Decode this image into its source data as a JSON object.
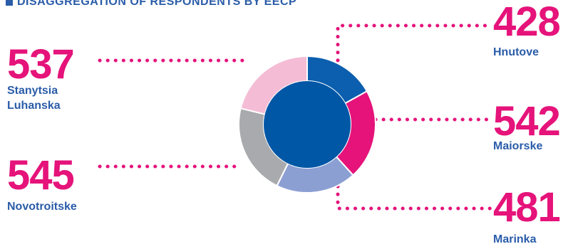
{
  "header": {
    "title": "DISAGGREGATION OF RESPONDENTS BY EECP"
  },
  "colors": {
    "accent": "#e5137a",
    "label": "#2a5ca8",
    "center": "#0057a6"
  },
  "chart_data": {
    "type": "pie",
    "title": "DISAGGREGATION OF RESPONDENTS BY EECP",
    "style": "donut",
    "series": [
      {
        "name": "Hnutove",
        "value": 428,
        "color": "#0b5fae"
      },
      {
        "name": "Maiorske",
        "value": 542,
        "color": "#e5137a"
      },
      {
        "name": "Marinka",
        "value": 481,
        "color": "#8c9fd3"
      },
      {
        "name": "Novotroitske",
        "value": 545,
        "color": "#a9aaad"
      },
      {
        "name": "Stanytsia Luhanska",
        "value": 537,
        "color": "#f4bcd5"
      }
    ],
    "labels": [
      {
        "value": "428",
        "name": "Hnutove"
      },
      {
        "value": "542",
        "name": "Maiorske"
      },
      {
        "value": "481",
        "name": "Marinka"
      },
      {
        "value": "545",
        "name": "Novotroitske"
      },
      {
        "value": "537",
        "name_lines": [
          "Stanytsia",
          "Luhanska"
        ]
      }
    ]
  }
}
